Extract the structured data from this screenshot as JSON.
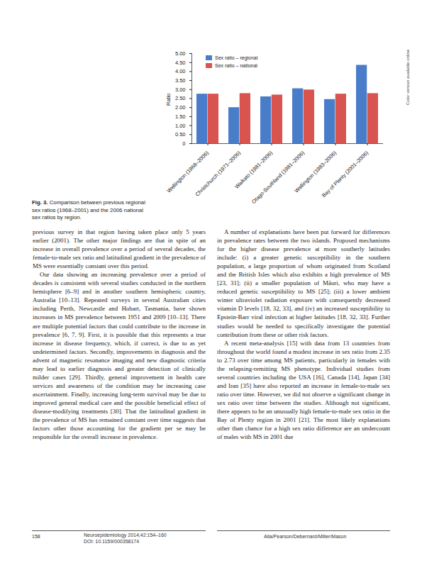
{
  "chart_data": {
    "type": "bar",
    "categories": [
      "Wellington (1968–2006)",
      "Christchurch (1971–2006)",
      "Waikato (1981–2006)",
      "Otago-Southland (1981–2006)",
      "Wellington (1983–2006)",
      "Bay of Plenty (2001–2006)"
    ],
    "series": [
      {
        "name": "Sex ratio – regional",
        "color": "#4a7dc9",
        "values": [
          2.75,
          2.0,
          2.6,
          3.05,
          2.45,
          4.35
        ]
      },
      {
        "name": "Sex ratio – national",
        "color": "#d9534f",
        "values": [
          2.75,
          2.78,
          2.7,
          2.98,
          2.75,
          2.78
        ]
      }
    ],
    "y_label": "Ratio",
    "ylim": [
      0,
      5
    ],
    "yticks": [
      0,
      {
        "value": 0.5,
        "label": "0.50"
      },
      {
        "value": 1,
        "label": "1.00"
      },
      {
        "value": 1.5,
        "label": "1.50"
      },
      {
        "value": 2,
        "label": "2.00"
      },
      {
        "value": 2.5,
        "label": "2.50"
      },
      {
        "value": 3,
        "label": "3.00"
      },
      {
        "value": 3.5,
        "label": "3.50"
      },
      {
        "value": 4,
        "label": "4.00"
      },
      {
        "value": 4.5,
        "label": "4.50"
      },
      {
        "value": 5,
        "label": "5.00"
      }
    ],
    "grid": false,
    "legend": "top-left"
  },
  "side_note": "Color version available online",
  "caption": {
    "label": "Fig. 3.",
    "text": "Comparison between previous regional sex ratios (1968–2001) and the 2006 national sex ratios by region."
  },
  "body": {
    "left": [
      "previous survey in that region having taken place only 5 years earlier (2001). The other major findings are that in spite of an increase in overall prevalence over a period of several decades, the female-to-male sex ratio and latitudinal gradient in the prevalence of MS were essentially constant over this period.",
      "Our data showing an increasing prevalence over a period of decades is consistent with several studies conducted in the northern hemisphere [6–9] and in another southern hemispheric country, Australia [10–13]. Repeated surveys in several Australian cities including Perth, Newcastle and Hobart, Tasmania, have shown increases in MS prevalence between 1951 and 2009 [10–13]. There are multiple potential factors that could contribute to the increase in prevalence [6, 7, 9]. First, it is possible that this represents a true increase in disease frequency, which, if correct, is due to as yet undetermined factors. Secondly, improvements in diagnosis and the advent of magnetic resonance imaging and new diagnostic criteria may lead to earlier diagnosis and greater detection of clinically milder cases [29]. Thirdly, general improvement in health care services and awareness of the condition may be increasing case ascertainment. Finally, increasing long-term survival may be due to improved general medical care and the possible beneficial effect of disease-modifying treatments [30]. That the latitudinal gradient in the prevalence of MS has remained constant over time suggests that factors other those accounting for the gradient per se may be responsible for the overall increase in prevalence."
    ],
    "right": [
      "A number of explanations have been put forward for differences in prevalence rates between the two islands. Proposed mechanisms for the higher disease prevalence at more southerly latitudes include: (i) a greater genetic susceptibility in the southern population, a large proportion of whom originated from Scotland and the British Isles which also exhibits a high prevalence of MS [23, 31]; (ii) a smaller population of Māori, who may have a reduced genetic susceptibility to MS [25]; (iii) a lower ambient winter ultraviolet radiation exposure with consequently decreased vitamin D levels [18, 32, 33], and (iv) an increased susceptibility to Epstein-Barr viral infection at higher latitudes [18, 32, 33]. Further studies would be needed to specifically investigate the potential contribution from these or other risk factors.",
      "A recent meta-analysis [15] with data from 13 countries from throughout the world found a modest increase in sex ratio from 2.35 to 2.73 over time among MS patients, particularly in females with the relapsing-remitting MS phenotype. Individual studies from several countries including the USA [16], Canada [14], Japan [34] and Iran [35] have also reported an increase in female-to-male sex ratio over time. However, we did not observe a significant change in sex ratio over time between the studies. Although not significant, there appears to be an unusually high female-to-male sex ratio in the Bay of Plenty region in 2001 [21]. The most likely explanations other than chance for a high sex ratio difference are an undercount of males with MS in 2001 due"
    ]
  },
  "footer": {
    "page": "158",
    "journal": "Neuroepidemiology 2014;42:154–160",
    "doi": "DOI: 10.1159/000358174",
    "authors": "Alla/Pearson/Debernard/Miller/Mason"
  }
}
